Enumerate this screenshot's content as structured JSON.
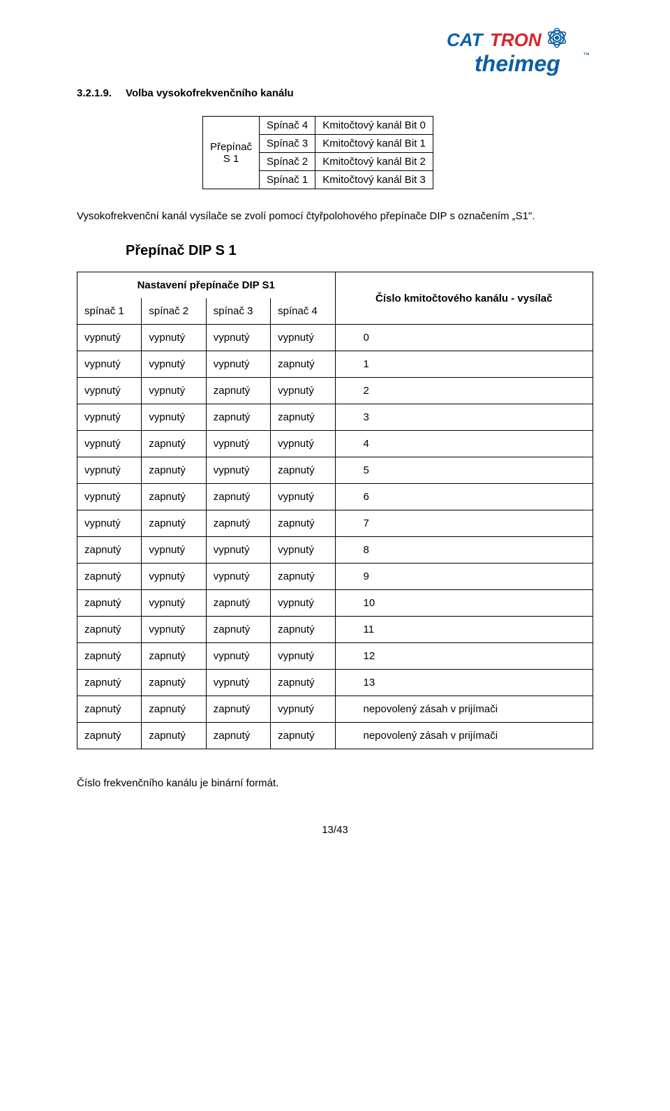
{
  "logo": {
    "brand1": "CATTRON",
    "brand2": "theimeg",
    "color_blue": "#0a5ea8",
    "color_red": "#d8232a"
  },
  "section": {
    "number": "3.2.1.9.",
    "title": "Volba vysokofrekvenčního kanálu"
  },
  "switch_table": {
    "left_line1": "Přepínač",
    "left_line2": "S 1",
    "rows": [
      {
        "sw": "Spínač 4",
        "desc": "Kmitočtový kanál Bit 0"
      },
      {
        "sw": "Spínač 3",
        "desc": "Kmitočtový kanál Bit 1"
      },
      {
        "sw": "Spínač 2",
        "desc": "Kmitočtový kanál Bit 2"
      },
      {
        "sw": "Spínač 1",
        "desc": "Kmitočtový kanál Bit 3"
      }
    ]
  },
  "body_text": "Vysokofrekvenční kanál vysílače se zvolí pomocí čtyřpolohového přepínače DIP s označením „S1\".",
  "dip_title": "Přepínač  DIP S 1",
  "dip_table": {
    "header_left": "Nastavení přepínače DIP S1",
    "header_right": "Číslo kmitočtového kanálu - vysílač",
    "subheaders": [
      "spínač 1",
      "spínač 2",
      "spínač 3",
      "spínač 4"
    ],
    "rows": [
      {
        "s": [
          "vypnutý",
          "vypnutý",
          "vypnutý",
          "vypnutý"
        ],
        "ch": "0"
      },
      {
        "s": [
          "vypnutý",
          "vypnutý",
          "vypnutý",
          "zapnutý"
        ],
        "ch": "1"
      },
      {
        "s": [
          "vypnutý",
          "vypnutý",
          "zapnutý",
          "vypnutý"
        ],
        "ch": "2"
      },
      {
        "s": [
          "vypnutý",
          "vypnutý",
          "zapnutý",
          "zapnutý"
        ],
        "ch": "3"
      },
      {
        "s": [
          "vypnutý",
          "zapnutý",
          "vypnutý",
          "vypnutý"
        ],
        "ch": "4"
      },
      {
        "s": [
          "vypnutý",
          "zapnutý",
          "vypnutý",
          "zapnutý"
        ],
        "ch": "5"
      },
      {
        "s": [
          "vypnutý",
          "zapnutý",
          "zapnutý",
          "vypnutý"
        ],
        "ch": "6"
      },
      {
        "s": [
          "vypnutý",
          "zapnutý",
          "zapnutý",
          "zapnutý"
        ],
        "ch": "7"
      },
      {
        "s": [
          "zapnutý",
          "vypnutý",
          "vypnutý",
          "vypnutý"
        ],
        "ch": "8"
      },
      {
        "s": [
          "zapnutý",
          "vypnutý",
          "vypnutý",
          "zapnutý"
        ],
        "ch": "9"
      },
      {
        "s": [
          "zapnutý",
          "vypnutý",
          "zapnutý",
          "vypnutý"
        ],
        "ch": "10"
      },
      {
        "s": [
          "zapnutý",
          "vypnutý",
          "zapnutý",
          "zapnutý"
        ],
        "ch": "11"
      },
      {
        "s": [
          "zapnutý",
          "zapnutý",
          "vypnutý",
          "vypnutý"
        ],
        "ch": "12"
      },
      {
        "s": [
          "zapnutý",
          "zapnutý",
          "vypnutý",
          "zapnutý"
        ],
        "ch": "13"
      },
      {
        "s": [
          "zapnutý",
          "zapnutý",
          "zapnutý",
          "vypnutý"
        ],
        "ch": "nepovolený zásah v prijímači"
      },
      {
        "s": [
          "zapnutý",
          "zapnutý",
          "zapnutý",
          "zapnutý"
        ],
        "ch": "nepovolený zásah v prijímači"
      }
    ]
  },
  "footer_text": "Číslo frekvenčního kanálu je binární formát.",
  "page_number": "13/43"
}
